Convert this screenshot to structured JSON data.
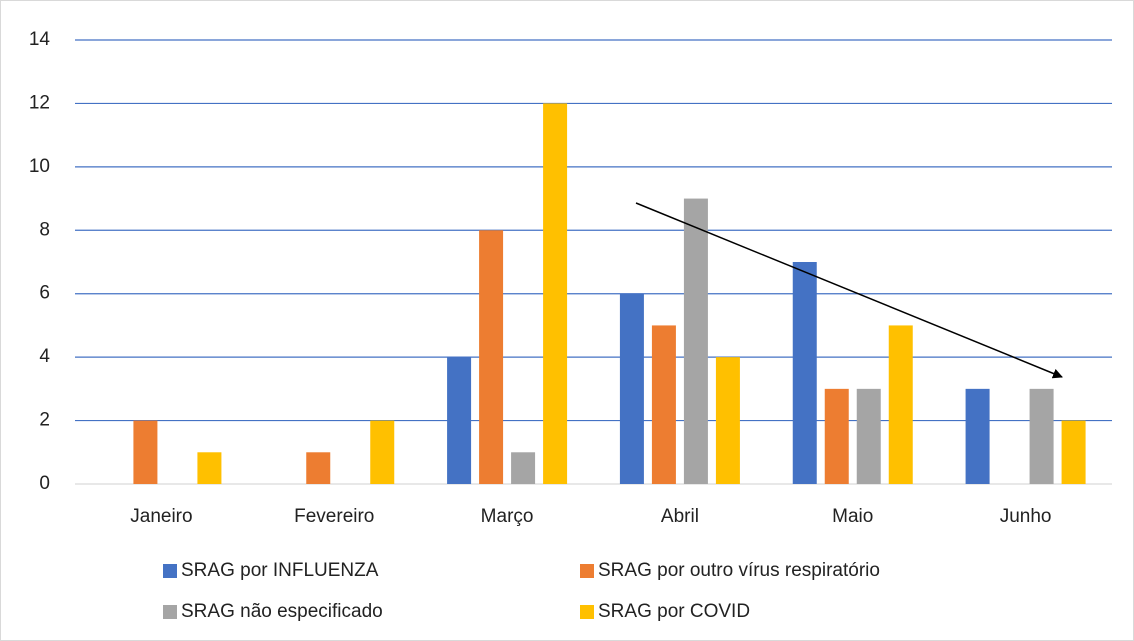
{
  "chart_data": {
    "type": "bar",
    "categories": [
      "Janeiro",
      "Fevereiro",
      "Março",
      "Abril",
      "Maio",
      "Junho"
    ],
    "series": [
      {
        "name": "SRAG por INFLUENZA",
        "color": "#4472c4",
        "values": [
          0,
          0,
          4,
          6,
          7,
          3
        ]
      },
      {
        "name": "SRAG por outro vírus respiratório",
        "color": "#ed7d31",
        "values": [
          2,
          1,
          8,
          5,
          3,
          0
        ]
      },
      {
        "name": "SRAG não especificado",
        "color": "#a5a5a5",
        "values": [
          0,
          0,
          1,
          9,
          3,
          3
        ]
      },
      {
        "name": "SRAG por COVID",
        "color": "#ffc000",
        "values": [
          1,
          2,
          12,
          4,
          5,
          2
        ]
      }
    ],
    "ylim": [
      0,
      14
    ],
    "yticks": [
      0,
      2,
      4,
      6,
      8,
      10,
      12,
      14
    ],
    "grid": true
  }
}
